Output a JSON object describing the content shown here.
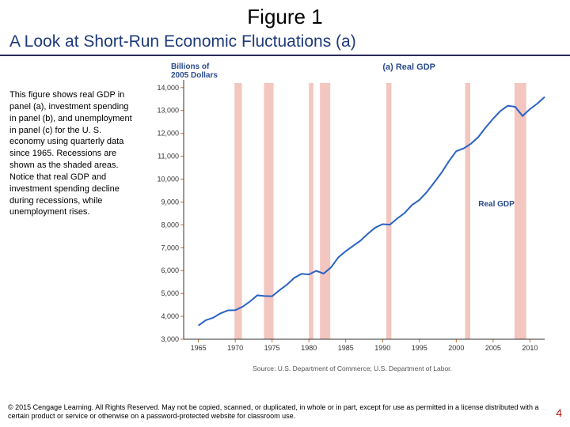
{
  "title": "Figure 1",
  "subtitle": "A Look at Short-Run Economic Fluctuations (a)",
  "caption": "This figure shows real GDP in panel (a), investment spending in panel (b), and unemployment in panel (c) for the U. S. economy using quarterly data since 1965. Recessions are shown as the shaded areas. Notice that real GDP and investment spending decline during recessions, while unemployment rises.",
  "chart": {
    "type": "line",
    "panel_title": "(a) Real GDP",
    "y_axis_title": "Billions of\n2005 Dollars",
    "series_label": "Real GDP",
    "series_label_pos_year": 2003,
    "series_label_pos_value": 8800,
    "ylim": [
      3000,
      14200
    ],
    "yticks": [
      3000,
      4000,
      5000,
      6000,
      7000,
      8000,
      9000,
      10000,
      11000,
      12000,
      13000,
      14000
    ],
    "ytick_labels": [
      "3,000",
      "4,000",
      "5,000",
      "6,000",
      "7,000",
      "8,000",
      "9,000",
      "10,000",
      "11,000",
      "12,000",
      "13,000",
      "14,000"
    ],
    "xlim": [
      1963,
      2012
    ],
    "xticks": [
      1965,
      1970,
      1975,
      1980,
      1985,
      1990,
      1995,
      2000,
      2005,
      2010
    ],
    "line_color": "#2a63c4",
    "line_width": 2,
    "tick_color": "#d46a2a",
    "axis_color": "#333333",
    "background_color": "#ffffff",
    "recession_color": "#f3c6c0",
    "recessions": [
      [
        1969.9,
        1970.9
      ],
      [
        1973.9,
        1975.2
      ],
      [
        1980.0,
        1980.6
      ],
      [
        1981.5,
        1982.9
      ],
      [
        1990.5,
        1991.2
      ],
      [
        2001.2,
        2001.9
      ],
      [
        2007.9,
        2009.5
      ]
    ],
    "data_years": [
      1965,
      1966,
      1967,
      1968,
      1969,
      1970,
      1971,
      1972,
      1973,
      1974,
      1975,
      1976,
      1977,
      1978,
      1979,
      1980,
      1981,
      1982,
      1983,
      1984,
      1985,
      1986,
      1987,
      1988,
      1989,
      1990,
      1991,
      1992,
      1993,
      1994,
      1995,
      1996,
      1997,
      1998,
      1999,
      2000,
      2001,
      2002,
      2003,
      2004,
      2005,
      2006,
      2007,
      2008,
      2009,
      2010,
      2011,
      2012
    ],
    "data_values": [
      3600,
      3830,
      3940,
      4130,
      4260,
      4270,
      4420,
      4650,
      4920,
      4890,
      4880,
      5140,
      5380,
      5680,
      5860,
      5830,
      5990,
      5870,
      6140,
      6580,
      6850,
      7080,
      7310,
      7610,
      7880,
      8030,
      8010,
      8280,
      8520,
      8870,
      9090,
      9430,
      9850,
      10280,
      10780,
      11220,
      11340,
      11550,
      11840,
      12260,
      12640,
      12980,
      13210,
      13160,
      12760,
      13060,
      13300,
      13590
    ]
  },
  "source": "Source: U.S. Department of Commerce; U.S. Department of Labor.",
  "copyright": "© 2015 Cengage Learning. All Rights Reserved. May not be copied, scanned, or duplicated, in whole or in part, except for use as permitted in a license distributed with a certain product or service or otherwise on a password-protected website for classroom use.",
  "page_number": "4"
}
